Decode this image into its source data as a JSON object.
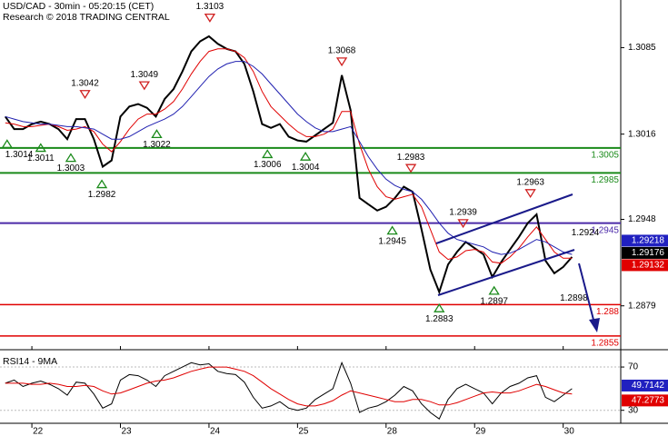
{
  "chart_data": [
    {
      "type": "line",
      "title": "USD/CAD - 30min - 05:20:15 (CET)",
      "subtitle": "Research © 2018 TRADING CENTRAL",
      "x": [
        -0.3,
        -0.2,
        -0.1,
        0,
        0.1,
        0.2,
        0.3,
        0.4,
        0.5,
        0.6,
        0.7,
        0.8,
        0.9,
        1.0,
        1.1,
        1.2,
        1.3,
        1.4,
        1.5,
        1.6,
        1.7,
        1.8,
        1.9,
        2.0,
        2.1,
        2.2,
        2.3,
        2.4,
        2.5,
        2.6,
        2.7,
        2.8,
        2.9,
        3.0,
        3.1,
        3.2,
        3.3,
        3.4,
        3.5,
        3.6,
        3.7,
        3.8,
        3.9,
        4.0,
        4.1,
        4.2,
        4.3,
        4.4,
        4.5,
        4.6,
        4.7,
        4.8,
        4.9,
        5.0,
        5.1,
        5.2,
        5.3,
        5.4,
        5.5,
        5.6,
        5.7,
        5.8,
        5.9,
        6.0,
        6.1
      ],
      "xlim": [
        -0.36,
        6.65
      ],
      "ylim": [
        1.2844,
        1.3123
      ],
      "yticks": [
        1.3085,
        1.3016,
        1.2948,
        1.2879
      ],
      "series": [
        {
          "color": "#000000",
          "values": [
            1.303,
            1.302,
            1.302,
            1.3024,
            1.3026,
            1.3024,
            1.302,
            1.3012,
            1.3028,
            1.3028,
            1.3012,
            1.299,
            1.2995,
            1.303,
            1.3038,
            1.304,
            1.3037,
            1.303,
            1.3044,
            1.3052,
            1.3066,
            1.3082,
            1.309,
            1.3094,
            1.3088,
            1.3084,
            1.3082,
            1.3072,
            1.305,
            1.3024,
            1.3021,
            1.3024,
            1.3014,
            1.3011,
            1.301,
            1.3015,
            1.302,
            1.3025,
            1.3063,
            1.3035,
            1.2965,
            1.296,
            1.2955,
            1.2958,
            1.2965,
            1.2974,
            1.297,
            1.294,
            1.2908,
            1.289,
            1.2912,
            1.2922,
            1.293,
            1.2925,
            1.292,
            1.2902,
            1.2914,
            1.2924,
            1.2934,
            1.2945,
            1.2952,
            1.2915,
            1.2905,
            1.291,
            1.2918
          ]
        },
        {
          "color": "#e00000",
          "values": [
            1.3025,
            1.3024,
            1.3022,
            1.3022,
            1.3023,
            1.3024,
            1.3022,
            1.3019,
            1.302,
            1.3022,
            1.3018,
            1.3008,
            1.3002,
            1.301,
            1.302,
            1.3028,
            1.3032,
            1.3032,
            1.3036,
            1.3042,
            1.3052,
            1.3064,
            1.3074,
            1.3082,
            1.3084,
            1.3084,
            1.3082,
            1.3077,
            1.3066,
            1.305,
            1.3038,
            1.3031,
            1.3024,
            1.3018,
            1.3014,
            1.3014,
            1.3016,
            1.302,
            1.3034,
            1.3034,
            1.3008,
            1.2988,
            1.2974,
            1.2966,
            1.2964,
            1.2966,
            1.2968,
            1.2958,
            1.294,
            1.2922,
            1.2916,
            1.2918,
            1.2923,
            1.2924,
            1.2922,
            1.2914,
            1.2913,
            1.2918,
            1.2925,
            1.2934,
            1.2942,
            1.2932,
            1.2922,
            1.2917,
            1.2917
          ]
        },
        {
          "color": "#2020b0",
          "values": [
            1.303,
            1.3028,
            1.3026,
            1.3025,
            1.3024,
            1.3024,
            1.3023,
            1.3022,
            1.3022,
            1.3021,
            1.302,
            1.3016,
            1.3012,
            1.3012,
            1.3014,
            1.3018,
            1.3022,
            1.3025,
            1.3028,
            1.3032,
            1.3038,
            1.3046,
            1.3054,
            1.3062,
            1.3068,
            1.3072,
            1.3074,
            1.3074,
            1.307,
            1.3064,
            1.3056,
            1.3048,
            1.304,
            1.3032,
            1.3026,
            1.3021,
            1.3018,
            1.3018,
            1.302,
            1.3022,
            1.301,
            1.2998,
            1.2988,
            1.298,
            1.2975,
            1.2972,
            1.297,
            1.2964,
            1.2955,
            1.2945,
            1.2937,
            1.2932,
            1.293,
            1.2928,
            1.2926,
            1.2922,
            1.292,
            1.2921,
            1.2924,
            1.2928,
            1.2932,
            1.293,
            1.2926,
            1.2922,
            1.292
          ]
        }
      ],
      "levels": [
        {
          "value": 1.3005,
          "color": "#1a8a1a"
        },
        {
          "value": 1.2985,
          "color": "#1a8a1a"
        },
        {
          "value": 1.2945,
          "color": "#4b2aa8"
        },
        {
          "value": 1.288,
          "color": "#e00000"
        },
        {
          "value": 1.2855,
          "color": "#e00000"
        }
      ],
      "price_boxes": [
        {
          "value": 1.29218,
          "color": "#2020c0"
        },
        {
          "value": 1.29176,
          "color": "#000000"
        },
        {
          "value": 1.29132,
          "color": "#e00000"
        }
      ],
      "annotations": [
        {
          "x": -0.28,
          "value": 1.3014,
          "side": "below",
          "marker": true
        },
        {
          "x": 0.1,
          "value": 1.3011,
          "side": "below",
          "marker": true
        },
        {
          "x": 0.44,
          "value": 1.3003,
          "side": "below",
          "marker": true
        },
        {
          "x": 0.79,
          "value": 1.2982,
          "side": "below",
          "marker": true
        },
        {
          "x": 0.6,
          "value": 1.3042,
          "side": "above",
          "marker": true
        },
        {
          "x": 1.27,
          "value": 1.3049,
          "side": "above",
          "marker": true
        },
        {
          "x": 1.41,
          "value": 1.3022,
          "side": "below",
          "marker": true
        },
        {
          "x": 2.01,
          "value": 1.3103,
          "side": "above",
          "marker": true
        },
        {
          "x": 2.66,
          "value": 1.3006,
          "side": "below",
          "marker": true
        },
        {
          "x": 3.09,
          "value": 1.3004,
          "side": "below",
          "marker": true
        },
        {
          "x": 3.5,
          "value": 1.3068,
          "side": "above",
          "marker": true
        },
        {
          "x": 4.28,
          "value": 1.2983,
          "side": "above",
          "marker": true
        },
        {
          "x": 4.07,
          "value": 1.2945,
          "side": "below",
          "marker": true
        },
        {
          "x": 4.87,
          "value": 1.2939,
          "side": "above",
          "marker": true
        },
        {
          "x": 4.6,
          "value": 1.2883,
          "side": "below",
          "marker": true
        },
        {
          "x": 5.22,
          "value": 1.2897,
          "side": "below",
          "marker": true
        },
        {
          "x": 5.63,
          "value": 1.2963,
          "side": "above",
          "marker": true
        },
        {
          "x": 6.25,
          "value": 1.2924,
          "side": "above",
          "marker": false
        },
        {
          "x": 6.12,
          "value": 1.2898,
          "side": "below",
          "marker": false
        }
      ]
    },
    {
      "type": "line",
      "title": "RSI14 - 9MA",
      "x": [
        -0.3,
        -0.2,
        -0.1,
        0,
        0.1,
        0.2,
        0.3,
        0.4,
        0.5,
        0.6,
        0.7,
        0.8,
        0.9,
        1.0,
        1.1,
        1.2,
        1.3,
        1.4,
        1.5,
        1.6,
        1.7,
        1.8,
        1.9,
        2.0,
        2.1,
        2.2,
        2.3,
        2.4,
        2.5,
        2.6,
        2.7,
        2.8,
        2.9,
        3.0,
        3.1,
        3.2,
        3.3,
        3.4,
        3.5,
        3.6,
        3.7,
        3.8,
        3.9,
        4.0,
        4.1,
        4.2,
        4.3,
        4.4,
        4.5,
        4.6,
        4.7,
        4.8,
        4.9,
        5.0,
        5.1,
        5.2,
        5.3,
        5.4,
        5.5,
        5.6,
        5.7,
        5.8,
        5.9,
        6.0,
        6.1
      ],
      "xlim": [
        -0.36,
        6.65
      ],
      "xticks": [
        {
          "value": 0,
          "label": "22"
        },
        {
          "value": 1,
          "label": "23"
        },
        {
          "value": 2,
          "label": "24"
        },
        {
          "value": 3,
          "label": "25"
        },
        {
          "value": 4,
          "label": "28"
        },
        {
          "value": 5,
          "label": "29"
        },
        {
          "value": 6,
          "label": "30"
        }
      ],
      "ylim": [
        18,
        86
      ],
      "yticks": [
        70,
        30
      ],
      "series": [
        {
          "color": "#000000",
          "values": [
            55,
            58,
            52,
            55,
            57,
            54,
            50,
            44,
            56,
            55,
            45,
            32,
            36,
            58,
            63,
            62,
            58,
            52,
            62,
            66,
            70,
            74,
            72,
            73,
            66,
            64,
            63,
            56,
            42,
            32,
            34,
            38,
            32,
            30,
            32,
            40,
            45,
            50,
            74,
            55,
            28,
            32,
            34,
            38,
            44,
            52,
            48,
            36,
            28,
            22,
            40,
            50,
            54,
            50,
            46,
            36,
            46,
            52,
            55,
            60,
            62,
            42,
            38,
            44,
            50
          ]
        },
        {
          "color": "#e00000",
          "values": [
            55,
            55,
            55,
            54,
            54,
            55,
            54,
            52,
            52,
            53,
            52,
            48,
            45,
            46,
            49,
            52,
            55,
            57,
            58,
            60,
            63,
            66,
            68,
            70,
            70,
            70,
            68,
            66,
            62,
            56,
            50,
            45,
            40,
            36,
            34,
            34,
            36,
            39,
            44,
            48,
            46,
            44,
            42,
            40,
            38,
            38,
            40,
            40,
            38,
            35,
            35,
            37,
            40,
            43,
            46,
            47,
            46,
            46,
            48,
            51,
            54,
            52,
            49,
            46,
            45
          ]
        }
      ],
      "value_boxes": [
        {
          "value": 49.7142,
          "color": "#2020c0"
        },
        {
          "value": 47.2773,
          "color": "#e00000"
        }
      ]
    }
  ]
}
